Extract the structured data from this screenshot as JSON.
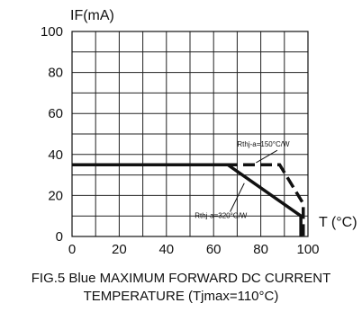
{
  "chart_data": {
    "type": "line",
    "xlabel": "T (°C)",
    "ylabel": "IF(mA)",
    "xlim": [
      0,
      100
    ],
    "ylim": [
      0,
      100
    ],
    "x_ticks": [
      "0",
      "20",
      "40",
      "60",
      "80",
      "100"
    ],
    "y_ticks": [
      "0",
      "20",
      "40",
      "60",
      "80",
      "100"
    ],
    "grid": true,
    "series": [
      {
        "name": "Rthj-a=150°C/W",
        "style": "dashed",
        "x": [
          0,
          88,
          98,
          98
        ],
        "y": [
          35,
          35,
          16,
          0
        ]
      },
      {
        "name": "Rthj-a=320°C/W",
        "style": "solid",
        "x": [
          0,
          66,
          97,
          97
        ],
        "y": [
          35,
          35,
          10,
          0
        ]
      }
    ],
    "annotations": [
      "Rthj-a=150°C/W",
      "Rthj-a=320°C/W"
    ],
    "caption": [
      "FIG.5 Blue MAXIMUM FORWARD DC CURRENT",
      "TEMPERATURE (Tjmax=110°C)"
    ]
  }
}
